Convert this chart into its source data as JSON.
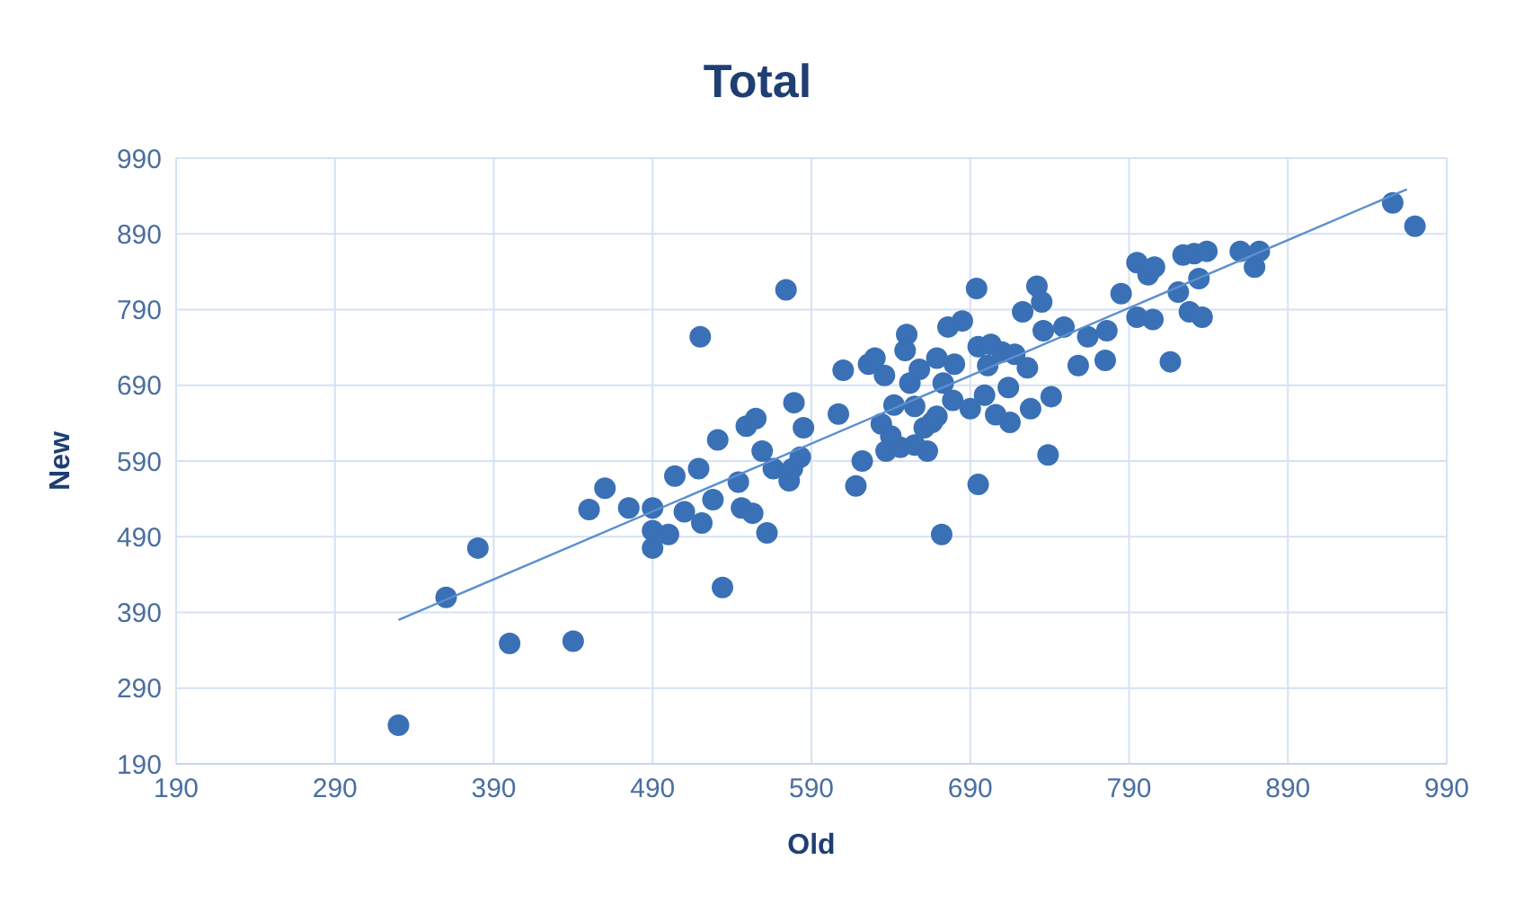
{
  "chart_data": {
    "type": "scatter",
    "title": "Total",
    "xlabel": "Old",
    "ylabel": "New",
    "xlim": [
      190,
      990
    ],
    "ylim": [
      190,
      990
    ],
    "xticks": [
      190,
      290,
      390,
      490,
      590,
      690,
      790,
      890,
      990
    ],
    "yticks": [
      190,
      290,
      390,
      490,
      590,
      690,
      790,
      890,
      990
    ],
    "grid": true,
    "legend": false,
    "marker": "circle",
    "series": [
      {
        "type": "scatter",
        "color": "#3a70b5",
        "x": [
          330,
          360,
          380,
          400,
          440,
          450,
          460,
          475,
          490,
          490,
          490,
          504,
          500,
          510,
          519,
          520,
          521,
          528,
          531,
          534,
          544,
          546,
          549,
          555,
          553,
          559,
          562,
          566,
          574,
          576,
          578,
          579,
          583,
          585,
          607,
          610,
          618,
          622,
          626,
          630,
          634,
          636,
          637,
          642,
          646,
          650,
          649,
          652,
          655,
          658,
          661,
          663,
          666,
          669,
          672,
          673,
          676,
          679,
          680,
          685,
          690,
          694,
          695,
          695,
          701,
          703,
          710,
          714,
          715,
          718,
          723,
          726,
          728,
          732,
          735,
          736,
          739,
          741,
          749,
          758,
          764,
          775,
          776,
          785,
          795,
          795,
          802,
          805,
          806,
          816,
          821,
          824,
          828,
          831,
          834,
          836,
          839,
          860,
          869,
          872,
          956,
          970,
          640,
          655,
          669,
          706,
          699
        ],
        "values": [
          241,
          410,
          475,
          349,
          352,
          526,
          554,
          528,
          498,
          475,
          528,
          570,
          493,
          523,
          580,
          754,
          508,
          539,
          618,
          423,
          562,
          528,
          636,
          646,
          521,
          603,
          495,
          580,
          816,
          564,
          580,
          667,
          595,
          634,
          652,
          710,
          557,
          590,
          718,
          726,
          639,
          703,
          603,
          664,
          608,
          757,
          736,
          693,
          662,
          711,
          634,
          603,
          641,
          726,
          493,
          693,
          767,
          670,
          718,
          775,
          659,
          818,
          559,
          741,
          716,
          744,
          734,
          687,
          641,
          731,
          787,
          713,
          659,
          821,
          800,
          762,
          598,
          675,
          767,
          716,
          754,
          723,
          762,
          811,
          780,
          852,
          836,
          777,
          846,
          721,
          813,
          862,
          787,
          864,
          831,
          780,
          867,
          867,
          846,
          867,
          931,
          900,
          623,
          611,
          649,
          651,
          677
        ]
      },
      {
        "type": "line",
        "color": "#5b8fd0",
        "marker": "none",
        "x": [
          330,
          965
        ],
        "values": [
          380,
          949
        ]
      }
    ]
  }
}
